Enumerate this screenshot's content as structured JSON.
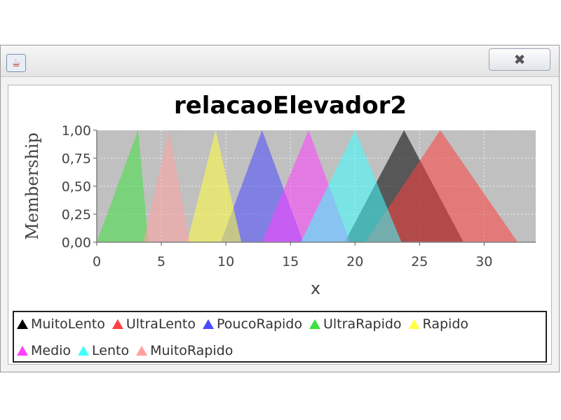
{
  "window": {
    "close_symbol": "✖",
    "app_icon": "java-coffee-icon"
  },
  "chart_data": {
    "type": "area",
    "title": "relacaoElevador2",
    "xlabel": "x",
    "ylabel": "Membership",
    "xlim": [
      0,
      34
    ],
    "ylim": [
      0,
      1
    ],
    "x_ticks": [
      "0",
      "5",
      "10",
      "15",
      "20",
      "25",
      "30"
    ],
    "x_tick_values": [
      0,
      5,
      10,
      15,
      20,
      25,
      30
    ],
    "y_ticks": [
      "0,00",
      "0,25",
      "0,50",
      "0,75",
      "1,00"
    ],
    "y_tick_values": [
      0,
      0.25,
      0.5,
      0.75,
      1
    ],
    "grid": true,
    "legend_position": "bottom",
    "series": [
      {
        "name": "MuitoLento",
        "color": "#000000",
        "points": [
          [
            19.2,
            0
          ],
          [
            23.8,
            1
          ],
          [
            28.4,
            0
          ]
        ]
      },
      {
        "name": "UltraLento",
        "color": "#ff4040",
        "points": [
          [
            20.8,
            0
          ],
          [
            26.6,
            1
          ],
          [
            32.6,
            0
          ]
        ]
      },
      {
        "name": "PoucoRapido",
        "color": "#4a4aff",
        "points": [
          [
            9.6,
            0
          ],
          [
            12.8,
            1
          ],
          [
            16.0,
            0
          ]
        ]
      },
      {
        "name": "UltraRapido",
        "color": "#3fe03f",
        "points": [
          [
            0.0,
            0
          ],
          [
            3.2,
            1
          ],
          [
            4.0,
            0
          ]
        ]
      },
      {
        "name": "Rapido",
        "color": "#ffff40",
        "points": [
          [
            7.0,
            0
          ],
          [
            9.2,
            1
          ],
          [
            11.2,
            0
          ]
        ]
      },
      {
        "name": "Medio",
        "color": "#ff40ff",
        "points": [
          [
            12.8,
            0
          ],
          [
            16.4,
            1
          ],
          [
            19.6,
            0
          ]
        ]
      },
      {
        "name": "Lento",
        "color": "#40ffff",
        "points": [
          [
            15.8,
            0
          ],
          [
            20.0,
            1
          ],
          [
            23.6,
            0
          ]
        ]
      },
      {
        "name": "MuitoRapido",
        "color": "#ffa0a0",
        "points": [
          [
            3.6,
            0
          ],
          [
            5.6,
            1
          ],
          [
            7.2,
            0
          ]
        ]
      }
    ]
  },
  "legend": {
    "rows": [
      [
        "MuitoLento",
        "UltraLento",
        "PoucoRapido",
        "UltraRapido",
        "Rapido"
      ],
      [
        "Medio",
        "Lento",
        "MuitoRapido"
      ]
    ]
  },
  "colors": {
    "plot_background": "#c0c0c0",
    "gridline": "#ffffff",
    "axis": "#808080"
  }
}
